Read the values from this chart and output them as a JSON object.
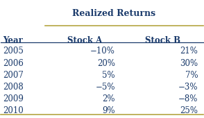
{
  "title": "Realized Returns",
  "col_headers": [
    "Year",
    "Stock A",
    "Stock B"
  ],
  "rows": [
    [
      "2005",
      "−10%",
      "21%"
    ],
    [
      "2006",
      "20%",
      "30%"
    ],
    [
      "2007",
      "5%",
      "7%"
    ],
    [
      "2008",
      "−5%",
      "−3%"
    ],
    [
      "2009",
      "2%",
      "−8%"
    ],
    [
      "2010",
      "9%",
      "25%"
    ]
  ],
  "text_color": "#1a3a6b",
  "top_line_color": "#b5a642",
  "bottom_line_color": "#b5a642",
  "mid_line_color": "#1a3a6b",
  "bg_color": "#ffffff",
  "title_fontsize": 9,
  "header_fontsize": 8.5,
  "data_fontsize": 8.5
}
